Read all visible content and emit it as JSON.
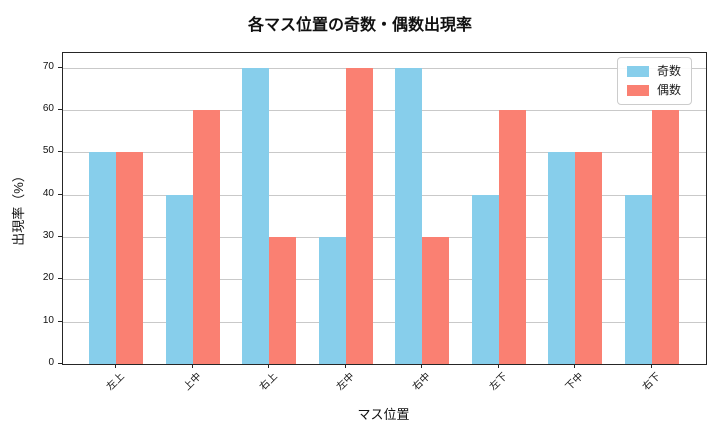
{
  "title": "各マス位置の奇数・偶数出現率",
  "chart_data": {
    "type": "bar",
    "categories": [
      "左上",
      "上中",
      "右上",
      "左中",
      "右中",
      "左下",
      "下中",
      "右下"
    ],
    "series": [
      {
        "name": "奇数",
        "color": "#87CEEB",
        "values": [
          50,
          40,
          70,
          30,
          70,
          40,
          50,
          40
        ]
      },
      {
        "name": "偶数",
        "color": "#FA8072",
        "values": [
          50,
          60,
          30,
          70,
          30,
          60,
          50,
          60
        ]
      }
    ],
    "title": "各マス位置の奇数・偶数出現率",
    "xlabel": "マス位置",
    "ylabel": "出現率（%）",
    "ylim": [
      0,
      73.5
    ],
    "yticks": [
      0,
      10,
      20,
      30,
      40,
      50,
      60,
      70
    ],
    "grid": true,
    "legend_position": "upper right",
    "grid_color": "#c9c9c9",
    "background": "#ffffff"
  }
}
